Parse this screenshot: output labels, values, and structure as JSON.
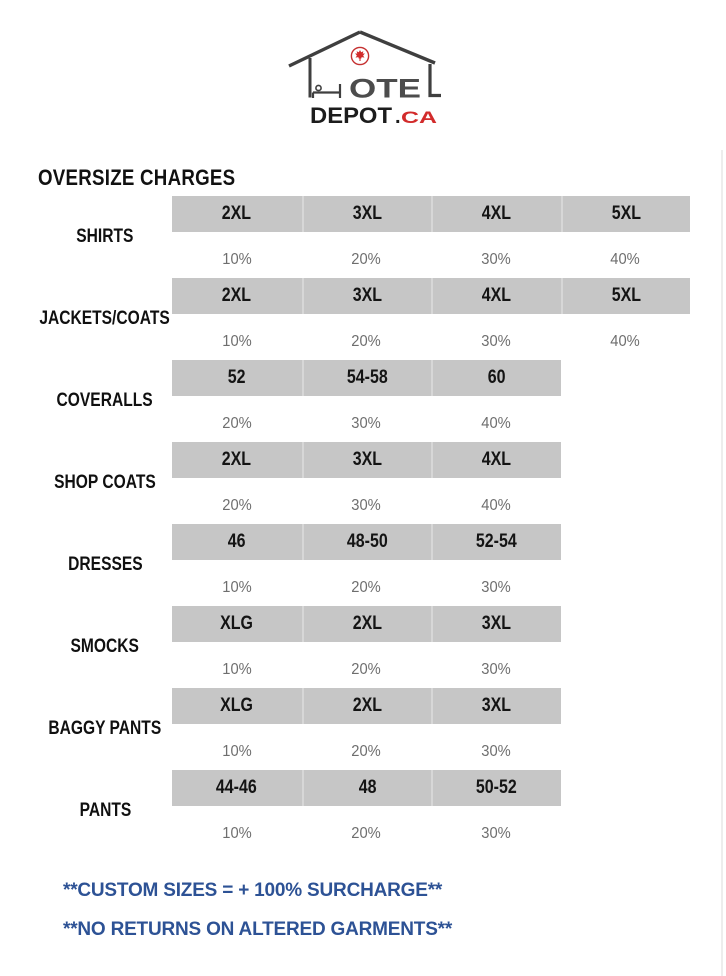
{
  "logo": {
    "hotel_letters": "OTE",
    "depot": "DEPOT",
    "dot": ".",
    "tld": "CA",
    "house_color": "#3f3f3f",
    "letters_color": "#4c4c4c",
    "depot_color": "#1c1c1c",
    "red_color": "#d22b2b"
  },
  "heading": "OVERSIZE CHARGES",
  "table": {
    "rows": [
      {
        "label": "SHIRTS",
        "sizes": [
          "2XL",
          "3XL",
          "4XL",
          "5XL"
        ],
        "charges": [
          "10%",
          "20%",
          "30%",
          "40%"
        ]
      },
      {
        "label": "JACKETS/COATS",
        "sizes": [
          "2XL",
          "3XL",
          "4XL",
          "5XL"
        ],
        "charges": [
          "10%",
          "20%",
          "30%",
          "40%"
        ]
      },
      {
        "label": "COVERALLS",
        "sizes": [
          "52",
          "54-58",
          "60"
        ],
        "charges": [
          "20%",
          "30%",
          "40%"
        ]
      },
      {
        "label": "SHOP COATS",
        "sizes": [
          "2XL",
          "3XL",
          "4XL"
        ],
        "charges": [
          "20%",
          "30%",
          "40%"
        ]
      },
      {
        "label": "DRESSES",
        "sizes": [
          "46",
          "48-50",
          "52-54"
        ],
        "charges": [
          "10%",
          "20%",
          "30%"
        ]
      },
      {
        "label": "SMOCKS",
        "sizes": [
          "XLG",
          "2XL",
          "3XL"
        ],
        "charges": [
          "10%",
          "20%",
          "30%"
        ]
      },
      {
        "label": "BAGGY PANTS",
        "sizes": [
          "XLG",
          "2XL",
          "3XL"
        ],
        "charges": [
          "10%",
          "20%",
          "30%"
        ]
      },
      {
        "label": "PANTS",
        "sizes": [
          "44-46",
          "48",
          "50-52"
        ],
        "charges": [
          "10%",
          "20%",
          "30%"
        ]
      }
    ]
  },
  "notes": [
    "**CUSTOM SIZES = + 100% SURCHARGE**",
    "**NO RETURNS ON ALTERED GARMENTS**"
  ],
  "colors": {
    "band_gray": "#c6c6c6",
    "charge_text": "#6e6e6e",
    "note_blue": "#2d5295"
  }
}
